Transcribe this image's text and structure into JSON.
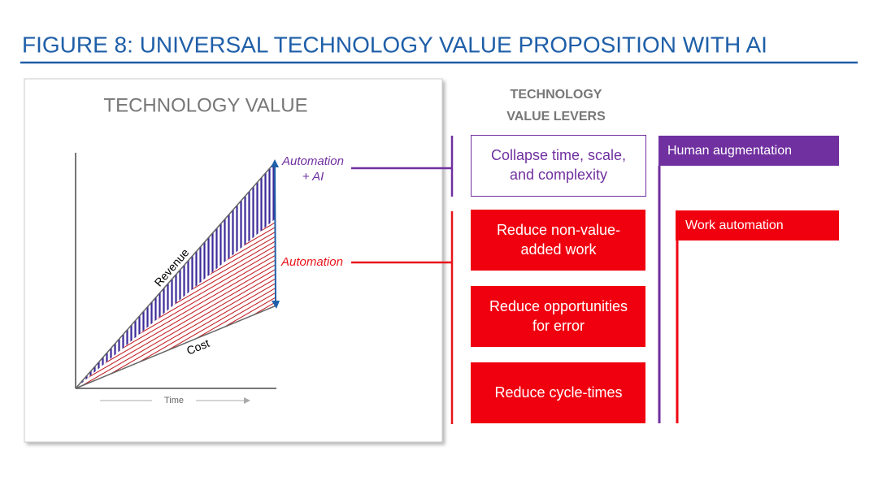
{
  "header": {
    "title": "FIGURE 8:  UNIVERSAL TECHNOLOGY VALUE PROPOSITION WITH AI"
  },
  "panel": {
    "title": "TECHNOLOGY VALUE",
    "labels": {
      "automation_ai": [
        "Automation",
        "+ AI"
      ],
      "automation": "Automation",
      "revenue": "Revenue",
      "cost": "Cost",
      "time": "Time"
    }
  },
  "levers": {
    "heading": [
      "TECHNOLOGY",
      "VALUE LEVERS"
    ],
    "boxes": [
      [
        "Collapse time, scale,",
        "and complexity"
      ],
      [
        "Reduce non-value-",
        "added work"
      ],
      [
        "Reduce opportunities",
        "for error"
      ],
      [
        "Reduce cycle-times"
      ]
    ],
    "categories": [
      "Human augmentation",
      "Work automation"
    ]
  }
}
